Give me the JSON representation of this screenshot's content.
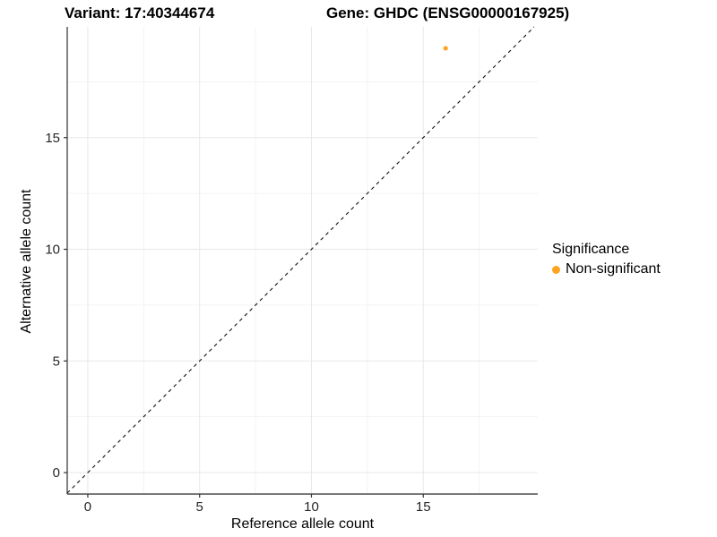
{
  "titles": {
    "variant": "Variant: 17:40344674",
    "gene": "Gene: GHDC (ENSG00000167925)"
  },
  "legend": {
    "title": "Significance",
    "items": [
      {
        "label": "Non-significant",
        "color": "#FFA320"
      }
    ]
  },
  "chart_data": {
    "type": "scatter",
    "title": "Variant: 17:40344674 | Gene: GHDC (ENSG00000167925)",
    "xlabel": "Reference allele count",
    "ylabel": "Alternative allele count",
    "xlim": [
      -0.92,
      20.12
    ],
    "ylim": [
      -0.96,
      19.96
    ],
    "x_major_ticks": [
      0,
      5,
      10,
      15
    ],
    "x_tick_labels": [
      "0",
      "5",
      "10",
      "15"
    ],
    "y_major_ticks": [
      0,
      5,
      10,
      15
    ],
    "y_tick_labels": [
      "0",
      "5",
      "10",
      "15"
    ],
    "x_minor_ticks": [
      2.5,
      7.5,
      12.5,
      17.5
    ],
    "y_minor_ticks": [
      2.5,
      7.5,
      12.5,
      17.5
    ],
    "grid": "major-and-minor",
    "legend_position": "right",
    "series": [
      {
        "name": "Non-significant",
        "color": "#FFA320",
        "points": [
          {
            "x": 16,
            "y": 19
          }
        ]
      }
    ],
    "reference_line": {
      "type": "identity y=x",
      "style": "dashed",
      "color": "#111111"
    },
    "colors": {
      "background": "#ffffff",
      "grid_major": "#e8e8e8",
      "grid_minor": "#f3f3f3",
      "axis_line": "#4d4d4d",
      "tick_mark": "#333333",
      "tick_text": "#262626",
      "point_orange": "#FFA320"
    }
  }
}
